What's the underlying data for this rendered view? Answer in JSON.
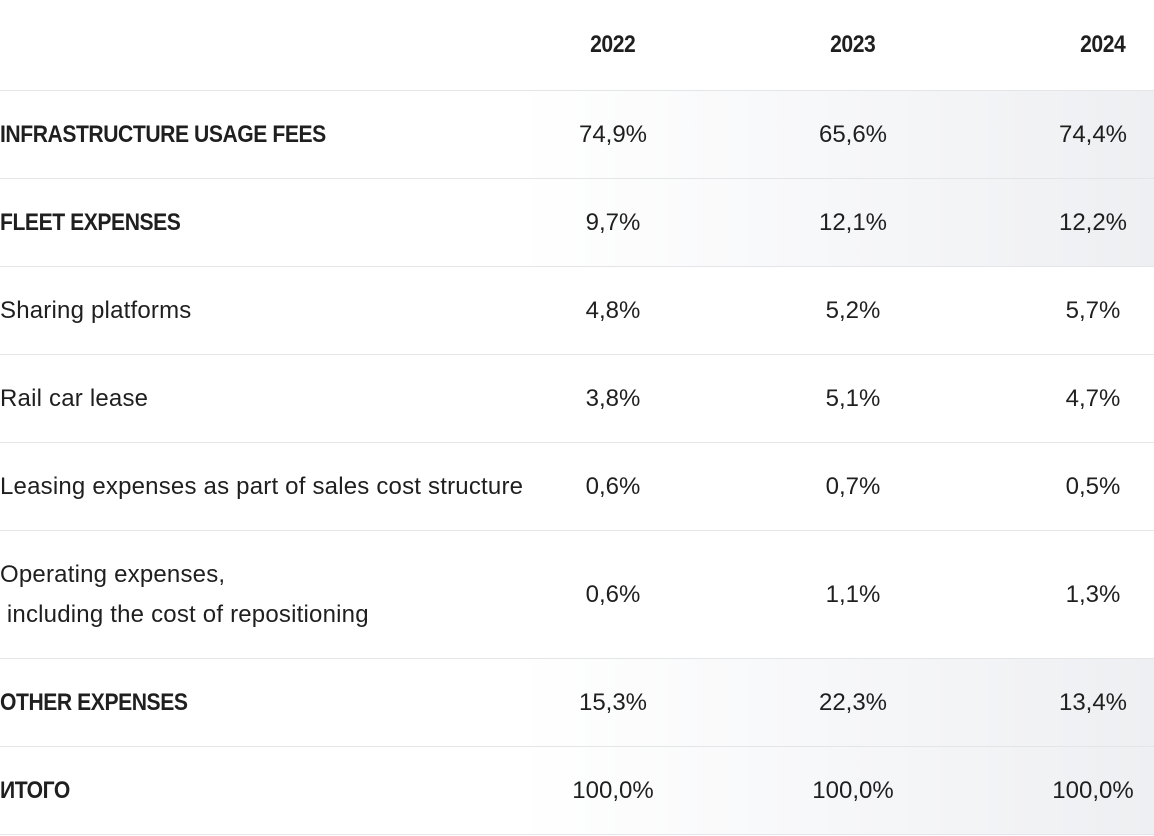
{
  "header": {
    "columns": [
      "2022",
      "2023",
      "2024"
    ]
  },
  "rows": [
    {
      "label": "INFRASTRUCTURE USAGE FEES",
      "values": [
        "74,9%",
        "65,6%",
        "74,4%"
      ]
    },
    {
      "label": "FLEET EXPENSES",
      "values": [
        "9,7%",
        "12,1%",
        "12,2%"
      ]
    },
    {
      "label": "Sharing platforms",
      "values": [
        "4,8%",
        "5,2%",
        "5,7%"
      ]
    },
    {
      "label": "Rail car lease",
      "values": [
        "3,8%",
        "5,1%",
        "4,7%"
      ]
    },
    {
      "label": "Leasing expenses as part of sales cost structure",
      "values": [
        "0,6%",
        "0,7%",
        "0,5%"
      ]
    },
    {
      "label_line1": "Operating expenses,",
      "label_line2": " including the cost of repositioning",
      "values": [
        "0,6%",
        "1,1%",
        "1,3%"
      ]
    },
    {
      "label": "OTHER EXPENSES",
      "values": [
        "15,3%",
        "22,3%",
        "13,4%"
      ]
    },
    {
      "label": "ИТОГО",
      "values": [
        "100,0%",
        "100,0%",
        "100,0%"
      ]
    }
  ]
}
